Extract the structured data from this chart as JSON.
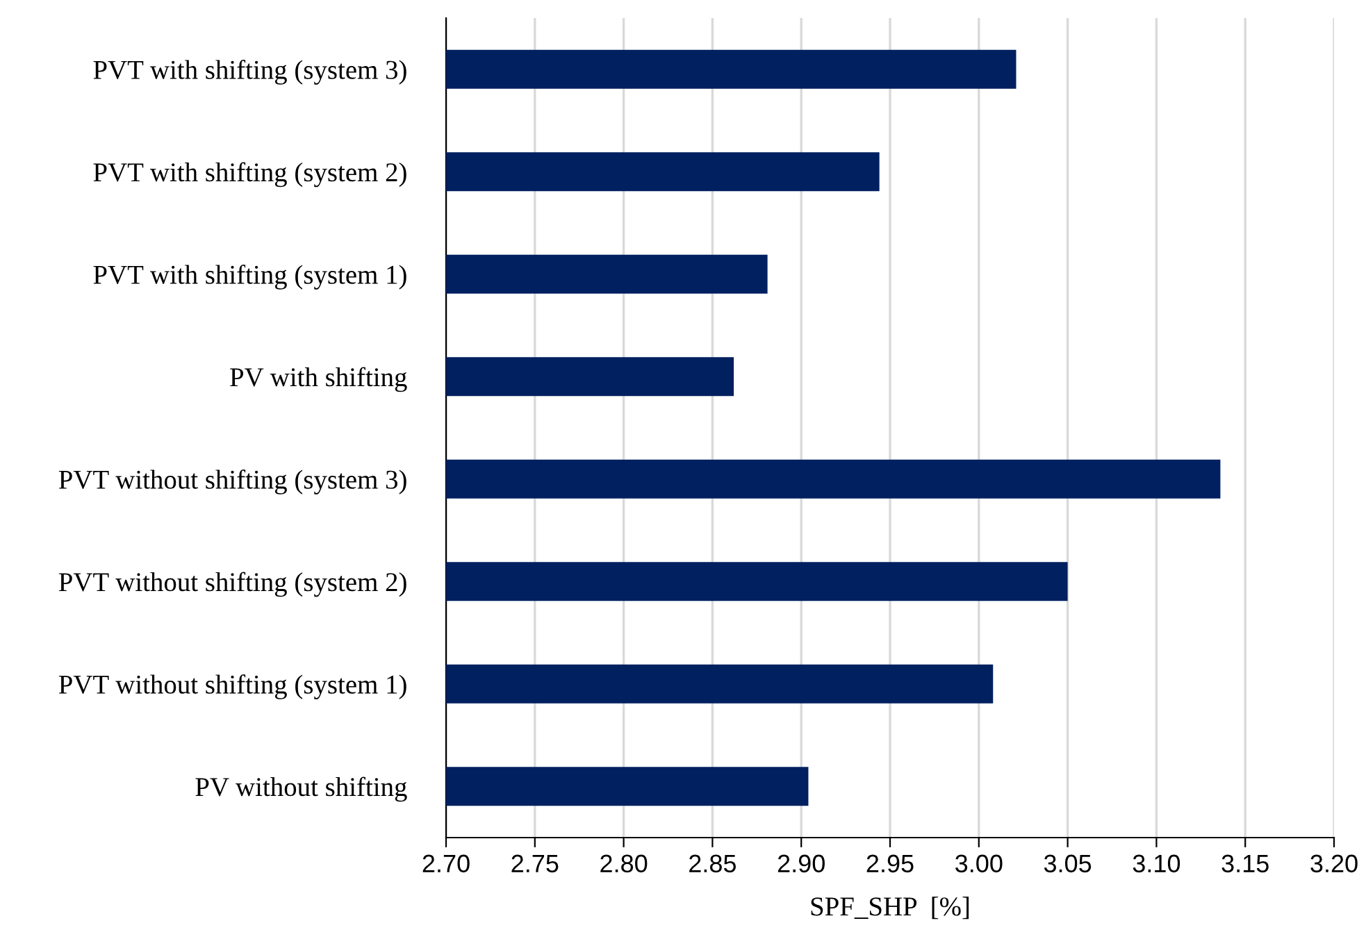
{
  "chart_data": {
    "type": "bar",
    "orientation": "horizontal",
    "xlabel": "SPF_SHP  [%]",
    "categories": [
      "PVT with shifting (system 3)",
      "PVT with shifting (system 2)",
      "PVT with shifting (system 1)",
      "PV with shifting",
      "PVT without shifting (system 3)",
      "PVT without shifting (system 2)",
      "PVT without shifting (system 1)",
      "PV without shifting"
    ],
    "values": [
      3.021,
      2.944,
      2.881,
      2.862,
      3.136,
      3.05,
      3.008,
      2.904
    ],
    "color": "#002060",
    "xlim": [
      2.7,
      3.2
    ],
    "xticks": [
      {
        "value": 2.7,
        "label": "2.70"
      },
      {
        "value": 2.75,
        "label": "2.75"
      },
      {
        "value": 2.8,
        "label": "2.80"
      },
      {
        "value": 2.85,
        "label": "2.85"
      },
      {
        "value": 2.9,
        "label": "2.90"
      },
      {
        "value": 2.95,
        "label": "2.95"
      },
      {
        "value": 3.0,
        "label": "3.00"
      },
      {
        "value": 3.05,
        "label": "3.05"
      },
      {
        "value": 3.1,
        "label": "3.10"
      },
      {
        "value": 3.15,
        "label": "3.15"
      },
      {
        "value": 3.2,
        "label": "3.20"
      }
    ],
    "grid": "x"
  }
}
